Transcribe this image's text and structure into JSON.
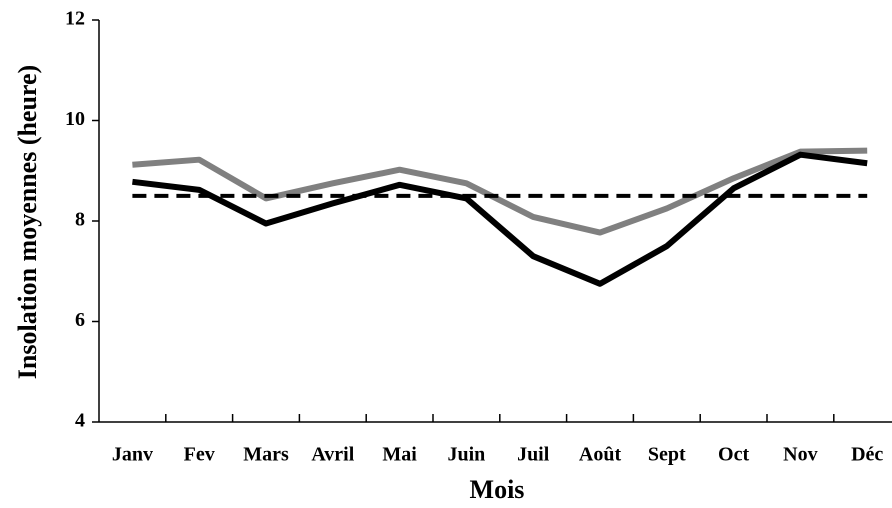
{
  "chart_data": {
    "type": "line",
    "x_label": "Mois",
    "y_label": "Insolation moyennes (heure)",
    "categories": [
      "Janv",
      "Fev",
      "Mars",
      "Avril",
      "Mai",
      "Juin",
      "Juil",
      "Août",
      "Sept",
      "Oct",
      "Nov",
      "Déc"
    ],
    "series": [
      {
        "color": "#808080",
        "style": "solid",
        "values": [
          9.12,
          9.22,
          8.45,
          8.75,
          9.02,
          8.75,
          8.08,
          7.77,
          8.25,
          8.85,
          9.38,
          9.4
        ]
      },
      {
        "color": "#000000",
        "style": "solid",
        "values": [
          8.78,
          8.62,
          7.95,
          8.35,
          8.72,
          8.45,
          7.3,
          6.75,
          7.5,
          8.65,
          9.32,
          9.15
        ]
      },
      {
        "color": "#000000",
        "style": "dashed",
        "values": [
          8.5,
          8.5,
          8.5,
          8.5,
          8.5,
          8.5,
          8.5,
          8.5,
          8.5,
          8.5,
          8.5,
          8.5
        ]
      }
    ],
    "ylim": [
      4,
      12
    ],
    "yticks": [
      4,
      6,
      8,
      10,
      12
    ],
    "grid": false
  }
}
